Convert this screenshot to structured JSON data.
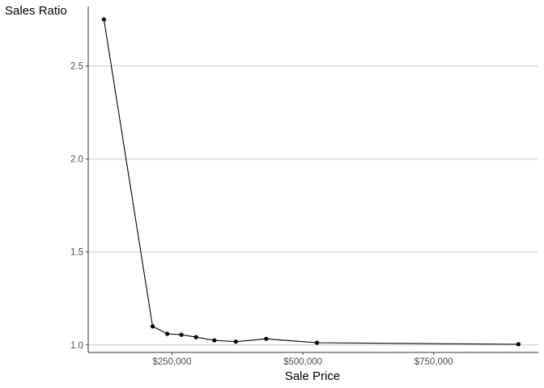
{
  "chart_data": {
    "type": "line",
    "title": "",
    "xlabel": "Sale Price",
    "ylabel": "Sales Ratio",
    "x_tick_labels": [
      "$250,000",
      "$500,000",
      "$750,000"
    ],
    "x_tick_values": [
      250000,
      500000,
      750000
    ],
    "y_tick_labels": [
      "1.0",
      "1.5",
      "2.0",
      "2.5"
    ],
    "y_tick_values": [
      1.0,
      1.5,
      2.0,
      2.5
    ],
    "xlim": [
      90000,
      950000
    ],
    "ylim": [
      0.96,
      2.82
    ],
    "grid": "horizontal-major",
    "series": [
      {
        "x": [
          120000,
          213000,
          241000,
          268000,
          296000,
          331000,
          372000,
          430000,
          527000,
          912000
        ],
        "y": [
          2.75,
          1.1,
          1.06,
          1.055,
          1.042,
          1.025,
          1.018,
          1.033,
          1.012,
          1.004
        ]
      }
    ]
  }
}
